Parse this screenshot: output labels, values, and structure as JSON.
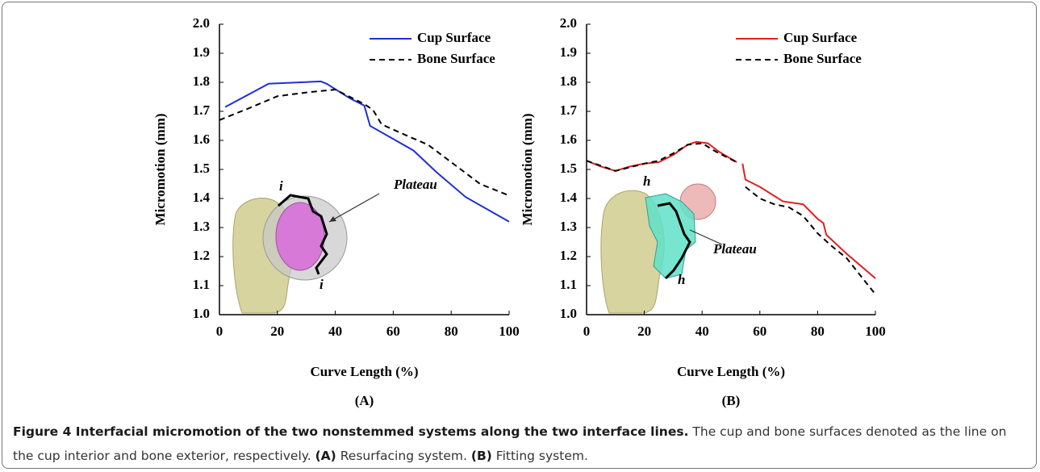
{
  "chart_data": [
    {
      "type": "line",
      "panel_label": "(A)",
      "x_label": "Curve Length (%)",
      "y_label": "Micromotion (mm)",
      "xlim": [
        0,
        100
      ],
      "xticks": [
        0,
        20,
        40,
        60,
        80,
        100
      ],
      "ylim": [
        1.0,
        2.0
      ],
      "yticks": [
        {
          "value": 1.0,
          "label": "1.0"
        },
        1.1,
        1.2,
        1.3,
        1.4,
        1.5,
        1.6,
        1.7,
        1.8,
        1.9,
        {
          "value": 2.0,
          "label": "2.0"
        }
      ],
      "legend": "upper right",
      "annotations": [
        "i",
        "Plateau",
        "i"
      ],
      "series": [
        {
          "name": "Cup Surface",
          "color": "#1f2fd6",
          "style": "solid",
          "x": [
            2,
            17,
            35,
            37,
            45,
            50,
            52,
            60,
            67,
            75,
            85,
            100
          ],
          "values": [
            1.715,
            1.795,
            1.803,
            1.795,
            1.745,
            1.72,
            1.65,
            1.605,
            1.565,
            1.49,
            1.405,
            1.32
          ]
        },
        {
          "name": "Bone Surface",
          "color": "#000000",
          "style": "dashed",
          "x": [
            0,
            10,
            20,
            30,
            40,
            45,
            50,
            53,
            56,
            65,
            72,
            80,
            90,
            100
          ],
          "values": [
            1.67,
            1.71,
            1.752,
            1.765,
            1.775,
            1.75,
            1.725,
            1.705,
            1.655,
            1.615,
            1.585,
            1.525,
            1.45,
            1.41
          ]
        }
      ]
    },
    {
      "type": "line",
      "panel_label": "(B)",
      "x_label": "Curve Length (%)",
      "y_label": "Micromotion (mm)",
      "xlim": [
        0,
        100
      ],
      "xticks": [
        0,
        20,
        40,
        60,
        80,
        100
      ],
      "ylim": [
        1.0,
        2.0
      ],
      "yticks": [
        {
          "value": 1.0,
          "label": "1.0"
        },
        1.1,
        1.2,
        1.3,
        1.4,
        1.5,
        1.6,
        1.7,
        1.8,
        1.9,
        {
          "value": 2.0,
          "label": "2.0"
        }
      ],
      "legend": "upper right",
      "annotations": [
        "h",
        "Plateau",
        "h"
      ],
      "series": [
        {
          "name": "Cup Surface",
          "color": "#e02020",
          "style": "solid",
          "x": [
            0,
            5,
            10,
            15,
            20,
            25,
            30,
            35,
            38,
            42,
            46,
            52,
            53,
            54,
            55,
            60,
            68,
            75,
            80,
            82,
            83,
            90,
            100
          ],
          "values": [
            1.53,
            1.51,
            1.495,
            1.51,
            1.52,
            1.525,
            1.55,
            1.585,
            1.595,
            1.59,
            1.56,
            1.525,
            null,
            1.52,
            1.465,
            1.44,
            1.39,
            1.38,
            1.33,
            1.315,
            1.275,
            1.21,
            1.125
          ]
        },
        {
          "name": "Bone Surface",
          "color": "#000000",
          "style": "dashed",
          "x": [
            0,
            10,
            20,
            25,
            30,
            35,
            40,
            45,
            52,
            53,
            55,
            60,
            65,
            70,
            75,
            80,
            85,
            90,
            100
          ],
          "values": [
            1.53,
            1.495,
            1.52,
            1.53,
            1.555,
            1.585,
            1.59,
            1.56,
            1.525,
            null,
            1.44,
            1.4,
            1.38,
            1.37,
            1.34,
            1.28,
            1.235,
            1.195,
            1.07
          ]
        }
      ]
    }
  ],
  "caption": {
    "title": "Figure 4 Interfacial micromotion of the two nonstemmed systems along the two interface lines.",
    "text": "The cup and bone surfaces denoted as the line on the cup interior and bone exterior, respectively.",
    "items": [
      {
        "label": "(A)",
        "text": "Resurfacing system."
      },
      {
        "label": "(B)",
        "text": "Fitting system."
      }
    ]
  }
}
